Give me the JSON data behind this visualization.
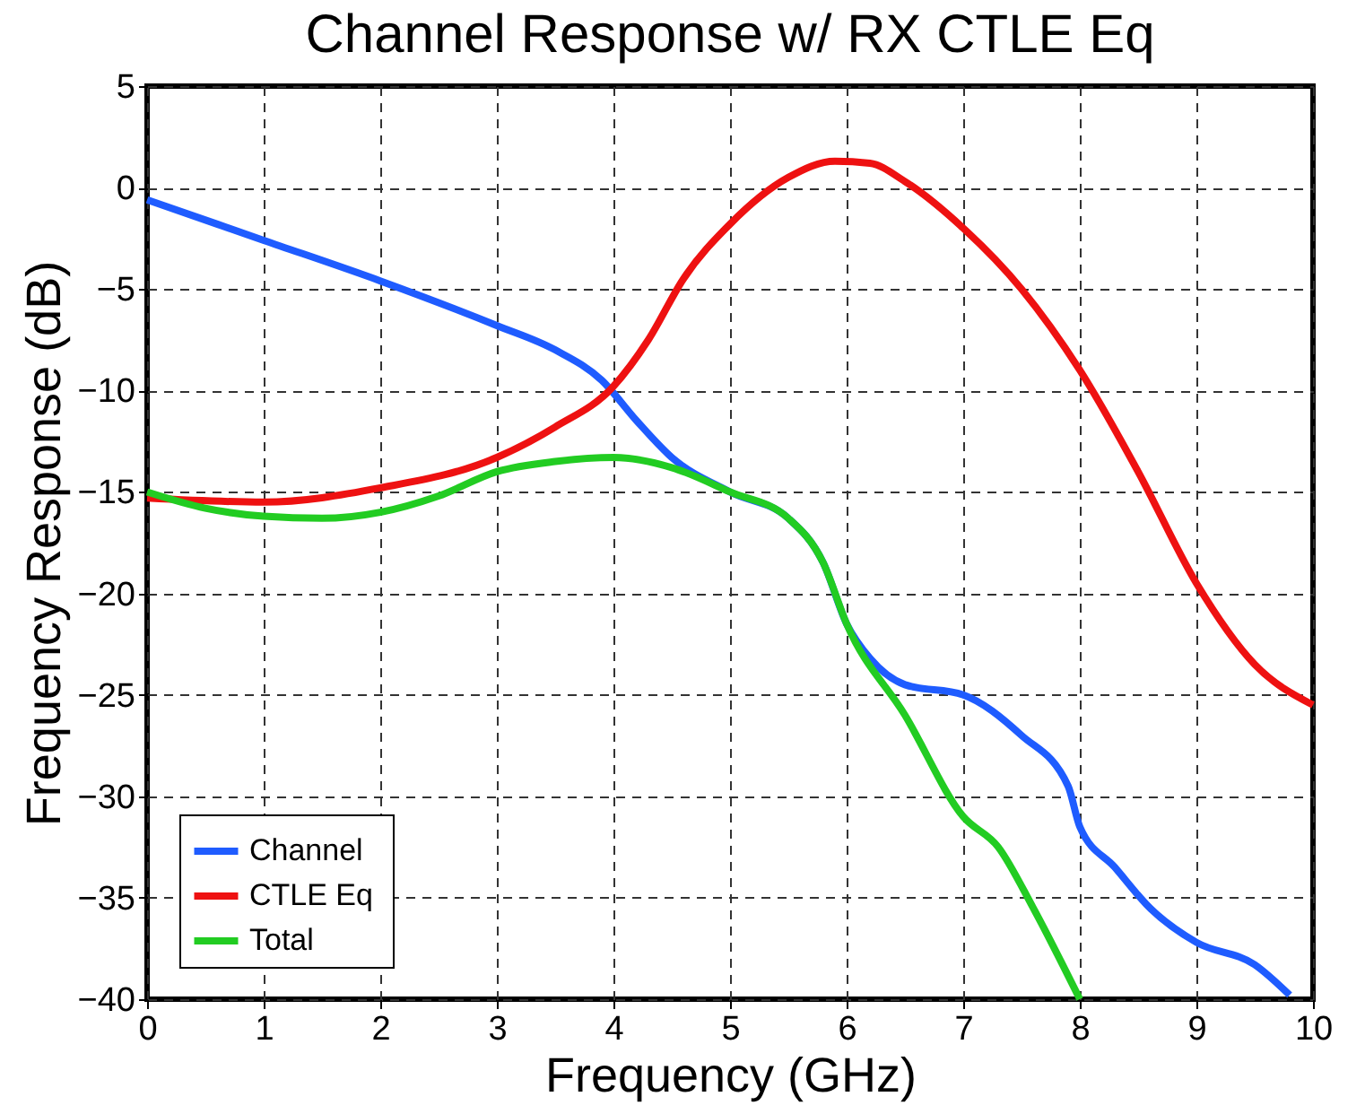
{
  "chart_data": {
    "type": "line",
    "title": "Channel Response w/ RX CTLE Eq",
    "xlabel": "Frequency (GHz)",
    "ylabel": "Frequency Response (dB)",
    "xlim": [
      0,
      10
    ],
    "xticks": [
      0,
      1,
      2,
      3,
      4,
      5,
      6,
      7,
      8,
      9,
      10
    ],
    "ylim": [
      -40,
      5
    ],
    "yticks": [
      -40,
      -35,
      -30,
      -25,
      -20,
      -15,
      -10,
      -5,
      0,
      5
    ],
    "grid": true,
    "legend": "bottom left",
    "line_style": "solid",
    "marker": "none",
    "series": [
      {
        "name": "Channel",
        "color": "#1f5cff",
        "x": [
          0,
          1,
          2,
          3,
          3.5,
          3.9,
          4.2,
          4.5,
          5,
          5.5,
          5.8,
          6,
          6.2,
          6.5,
          7,
          7.5,
          7.9,
          8,
          8.3,
          8.6,
          9,
          9.5,
          9.8
        ],
        "values": [
          -0.6,
          -2.6,
          -4.6,
          -6.8,
          -8,
          -9.5,
          -11.5,
          -13.3,
          -15,
          -16.3,
          -18.5,
          -21.5,
          -23.2,
          -24.5,
          -25,
          -27,
          -29.5,
          -31.5,
          -33.5,
          -35.5,
          -37.2,
          -38.3,
          -39.8
        ]
      },
      {
        "name": "CTLE  Eq",
        "color": "#ee1111",
        "x": [
          0,
          1,
          2,
          3,
          3.5,
          4,
          4.3,
          4.6,
          5,
          5.5,
          5.9,
          6.2,
          6.5,
          7,
          7.5,
          8,
          8.5,
          9,
          9.5,
          10
        ],
        "values": [
          -15.3,
          -15.5,
          -14.8,
          -13.3,
          -11.8,
          -9.8,
          -7.5,
          -4.5,
          -1.8,
          0.5,
          1.3,
          1.2,
          0.3,
          -2,
          -5,
          -9,
          -14,
          -19.5,
          -23.5,
          -25.5
        ]
      },
      {
        "name": "Total",
        "color": "#22cc22",
        "x": [
          0,
          0.5,
          1,
          1.5,
          2,
          2.5,
          3,
          3.5,
          4,
          4.5,
          5,
          5.5,
          5.8,
          6,
          6.5,
          7,
          7.3,
          7.6,
          8
        ],
        "values": [
          -15,
          -15.8,
          -16.2,
          -16.3,
          -16,
          -15.2,
          -14,
          -13.5,
          -13.3,
          -13.8,
          -15,
          -16.3,
          -18.5,
          -21.5,
          -26,
          -31,
          -32.5,
          -35.5,
          -40
        ]
      }
    ]
  }
}
